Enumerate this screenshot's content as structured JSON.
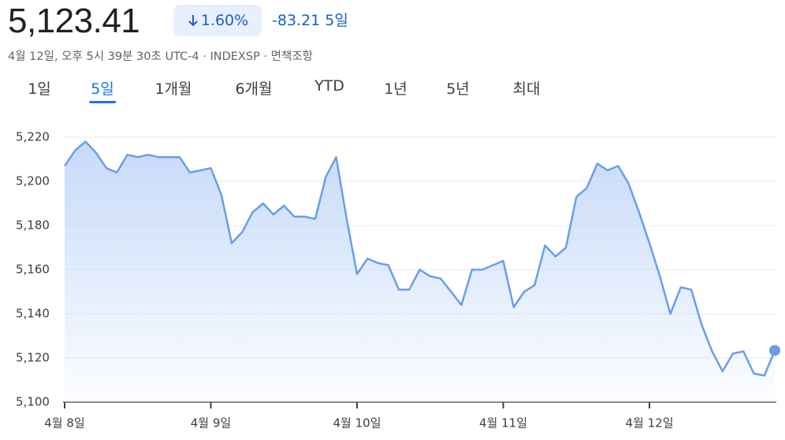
{
  "header": {
    "price": "5,123.41",
    "change_percent": "1.60%",
    "change": "-83.21",
    "period": "5일",
    "subtitle": "4월 12일, 오후 5시 39분 30초 UTC-4 · INDEXSP · 면책조항"
  },
  "tabs": {
    "items": [
      "1일",
      "5일",
      "1개월",
      "6개월",
      "YTD",
      "1년",
      "5년",
      "최대"
    ],
    "selected": 1
  },
  "chart_data": {
    "type": "line",
    "categories": [
      "4월 8일",
      null,
      null,
      null,
      null,
      null,
      null,
      null,
      null,
      null,
      null,
      null,
      null,
      null,
      "4월 9일",
      null,
      null,
      null,
      null,
      null,
      null,
      null,
      null,
      null,
      null,
      null,
      null,
      null,
      "4월 10일",
      null,
      null,
      null,
      null,
      null,
      null,
      null,
      null,
      null,
      null,
      null,
      null,
      null,
      "4월 11일",
      null,
      null,
      null,
      null,
      null,
      null,
      null,
      null,
      null,
      null,
      null,
      null,
      null,
      "4월 12일",
      null,
      null,
      null,
      null,
      null,
      null,
      null,
      null,
      null,
      null,
      null,
      null
    ],
    "series": [
      {
        "color": "#6a9ee8",
        "values": [
          5207,
          5214,
          5218,
          5213,
          5206,
          5204,
          5212,
          5211,
          5212,
          5211,
          5211,
          5211,
          5204,
          5205,
          5206,
          5194,
          5172,
          5177,
          5186,
          5190,
          5185,
          5189,
          5184,
          5184,
          5183,
          5202,
          5211,
          5183,
          5158,
          5165,
          5163,
          5162,
          5151,
          5151,
          5160,
          5157,
          5156,
          5150,
          5144,
          5160,
          5160,
          5162,
          5164,
          5143,
          5150,
          5153,
          5171,
          5166,
          5170,
          5193,
          5197,
          5208,
          5205,
          5207,
          5199,
          5186,
          5172,
          5157,
          5140,
          5152,
          5151,
          5135,
          5123,
          5114,
          5122,
          5123,
          5113,
          5112,
          5123.41
        ]
      }
    ],
    "ylim": [
      5100,
      5220
    ],
    "yticks": [
      {
        "value": 5100,
        "label": "5,100"
      },
      {
        "value": 5120,
        "label": "5,120"
      },
      {
        "value": 5140,
        "label": "5,140"
      },
      {
        "value": 5160,
        "label": "5,160"
      },
      {
        "value": 5180,
        "label": "5,180"
      },
      {
        "value": 5200,
        "label": "5,200"
      },
      {
        "value": 5220,
        "label": "5,220"
      }
    ],
    "grid": true
  }
}
